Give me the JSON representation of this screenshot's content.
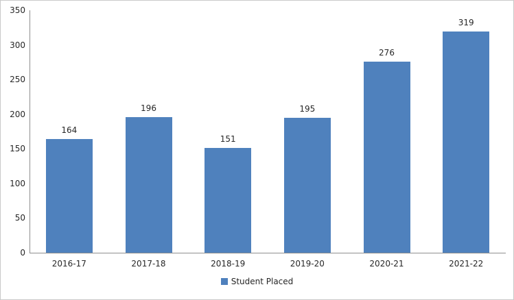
{
  "chart_data": {
    "type": "bar",
    "title": "",
    "xlabel": "",
    "ylabel": "",
    "categories": [
      "2016-17",
      "2017-18",
      "2018-19",
      "2019-20",
      "2020-21",
      "2021-22"
    ],
    "series": [
      {
        "name": "Student Placed",
        "values": [
          164,
          196,
          151,
          195,
          276,
          319
        ]
      }
    ],
    "data_labels_shown": true,
    "ylim": [
      0,
      350
    ],
    "ytick_step": 50,
    "ytick_labels": [
      "0",
      "50",
      "100",
      "150",
      "200",
      "250",
      "300",
      "350"
    ],
    "grid": false,
    "legend_position": "bottom"
  },
  "legend": {
    "label": "Student Placed"
  },
  "colors": {
    "bar_fill": "#4f81bd",
    "legend_swatch": "#4f81bd",
    "axis_line": "#8e8e8e",
    "text": "#262626",
    "outer_border": "#c9c9c9",
    "background": "#ffffff"
  }
}
